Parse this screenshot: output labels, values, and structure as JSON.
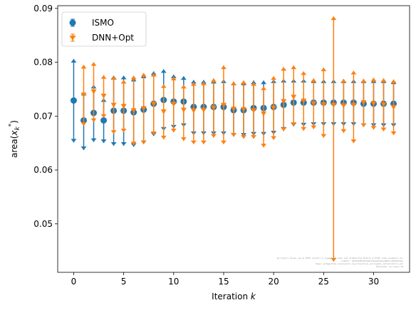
{
  "chart_data": {
    "type": "scatter",
    "xlabel_main": "Iteration ",
    "xlabel_var": "k",
    "ylabel_main": "area(",
    "ylabel_var": "x",
    "ylabel_sub": "k",
    "ylabel_sup": "*",
    "ylabel_close": ")",
    "xlim": [
      -1.6,
      33.6
    ],
    "ylim": [
      0.041,
      0.0905
    ],
    "xticks": [
      0,
      5,
      10,
      15,
      20,
      25,
      30
    ],
    "yticks": [
      0.05,
      0.06,
      0.07,
      0.08,
      0.09
    ],
    "legend_position": "top-left",
    "watermark_lines": [
      "By Kjetil Olsen Lye @ ETHZ <kjetil.o.lye@gmail.com> and Siddhartha Mishra @ ETHZ <shm.snadwalt.ch>",
      "Commit: 3a45e0db5a97a0f1e0aa0c2b1e80d1c2a90d2c01",
      "Repo: git@github.com:kjetil-lye/iterative_surrogate_optimization.git",
      "Hostname: eu-login-10"
    ],
    "series": [
      {
        "name": "ISMO",
        "color": "#1f77b4",
        "x": [
          0,
          1,
          2,
          3,
          4,
          5,
          6,
          7,
          8,
          9,
          10,
          11,
          12,
          13,
          14,
          15,
          16,
          17,
          18,
          19,
          20,
          21,
          22,
          23,
          24,
          25,
          26,
          27,
          28,
          29,
          30,
          31,
          32
        ],
        "y": [
          0.0729,
          0.0692,
          0.0706,
          0.0692,
          0.071,
          0.071,
          0.0707,
          0.0712,
          0.0723,
          0.073,
          0.0727,
          0.0727,
          0.0717,
          0.0717,
          0.0717,
          0.0717,
          0.0711,
          0.0711,
          0.0715,
          0.0715,
          0.0717,
          0.0721,
          0.0725,
          0.0725,
          0.0725,
          0.0725,
          0.0725,
          0.0725,
          0.0725,
          0.0723,
          0.0723,
          0.0723,
          0.0723
        ],
        "upper": [
          0.0806,
          0.0745,
          0.0758,
          0.0733,
          0.0775,
          0.0775,
          0.0771,
          0.0777,
          0.0783,
          0.0787,
          0.0777,
          0.0774,
          0.0767,
          0.0767,
          0.0767,
          0.0768,
          0.0764,
          0.0764,
          0.0766,
          0.0766,
          0.0768,
          0.0769,
          0.0769,
          0.0769,
          0.0768,
          0.0768,
          0.0768,
          0.0768,
          0.0768,
          0.0768,
          0.0768,
          0.0768,
          0.0766
        ],
        "lower": [
          0.0651,
          0.0637,
          0.0652,
          0.065,
          0.0645,
          0.0645,
          0.0643,
          0.0648,
          0.0663,
          0.0673,
          0.0677,
          0.068,
          0.0665,
          0.0665,
          0.0665,
          0.0665,
          0.0662,
          0.0662,
          0.0664,
          0.0664,
          0.0666,
          0.0673,
          0.0681,
          0.0681,
          0.0682,
          0.0682,
          0.0682,
          0.0682,
          0.0682,
          0.068,
          0.068,
          0.068,
          0.068
        ]
      },
      {
        "name": "DNN+Opt",
        "color": "#ff7f0e",
        "x": [
          1,
          2,
          3,
          4,
          5,
          6,
          7,
          8,
          9,
          10,
          11,
          12,
          13,
          14,
          15,
          16,
          17,
          18,
          19,
          20,
          21,
          22,
          23,
          24,
          25,
          26,
          27,
          28,
          29,
          30,
          31,
          32
        ],
        "y": [
          0.0739,
          0.0745,
          0.0737,
          0.072,
          0.0718,
          0.071,
          0.0714,
          0.0722,
          0.0708,
          0.0722,
          0.0711,
          0.071,
          0.0711,
          0.0715,
          0.072,
          0.0713,
          0.0712,
          0.071,
          0.0704,
          0.0715,
          0.0727,
          0.0735,
          0.0728,
          0.0723,
          0.0721,
          0.072,
          0.0719,
          0.072,
          0.0725,
          0.0723,
          0.0721,
          0.0716
        ],
        "upper": [
          0.0795,
          0.08,
          0.0776,
          0.0774,
          0.0767,
          0.0775,
          0.078,
          0.078,
          0.0759,
          0.0773,
          0.0758,
          0.0763,
          0.0764,
          0.077,
          0.0794,
          0.0764,
          0.0766,
          0.0763,
          0.0755,
          0.0774,
          0.0791,
          0.0794,
          0.0783,
          0.077,
          0.079,
          0.0885,
          0.0769,
          0.0784,
          0.0769,
          0.0771,
          0.077,
          0.0768
        ],
        "lower": [
          0.0682,
          0.0689,
          0.0697,
          0.0667,
          0.067,
          0.0646,
          0.0648,
          0.0665,
          0.0657,
          0.067,
          0.0654,
          0.0648,
          0.0648,
          0.066,
          0.0648,
          0.0662,
          0.0658,
          0.0658,
          0.0642,
          0.0656,
          0.0672,
          0.0682,
          0.0673,
          0.0676,
          0.066,
          0.043,
          0.0669,
          0.065,
          0.068,
          0.0675,
          0.0672,
          0.0665
        ]
      }
    ]
  }
}
